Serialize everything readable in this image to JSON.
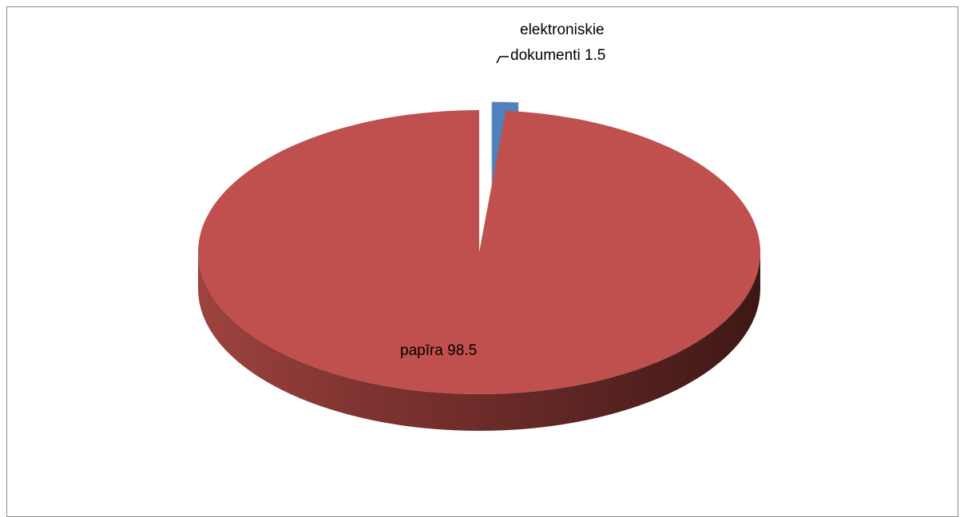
{
  "chart_data": {
    "type": "pie",
    "style": "3d-exploded",
    "title": "",
    "legend": "none",
    "slices": [
      {
        "category": "elektroniskie dokumenti",
        "value": 1.5,
        "color": "#4f81bd",
        "label_lines": [
          "elektroniskie",
          "dokumenti 1.5"
        ]
      },
      {
        "category": "papīra",
        "value": 98.5,
        "color": "#c0504d",
        "label_lines": [
          "papīra 98.5"
        ]
      }
    ]
  }
}
